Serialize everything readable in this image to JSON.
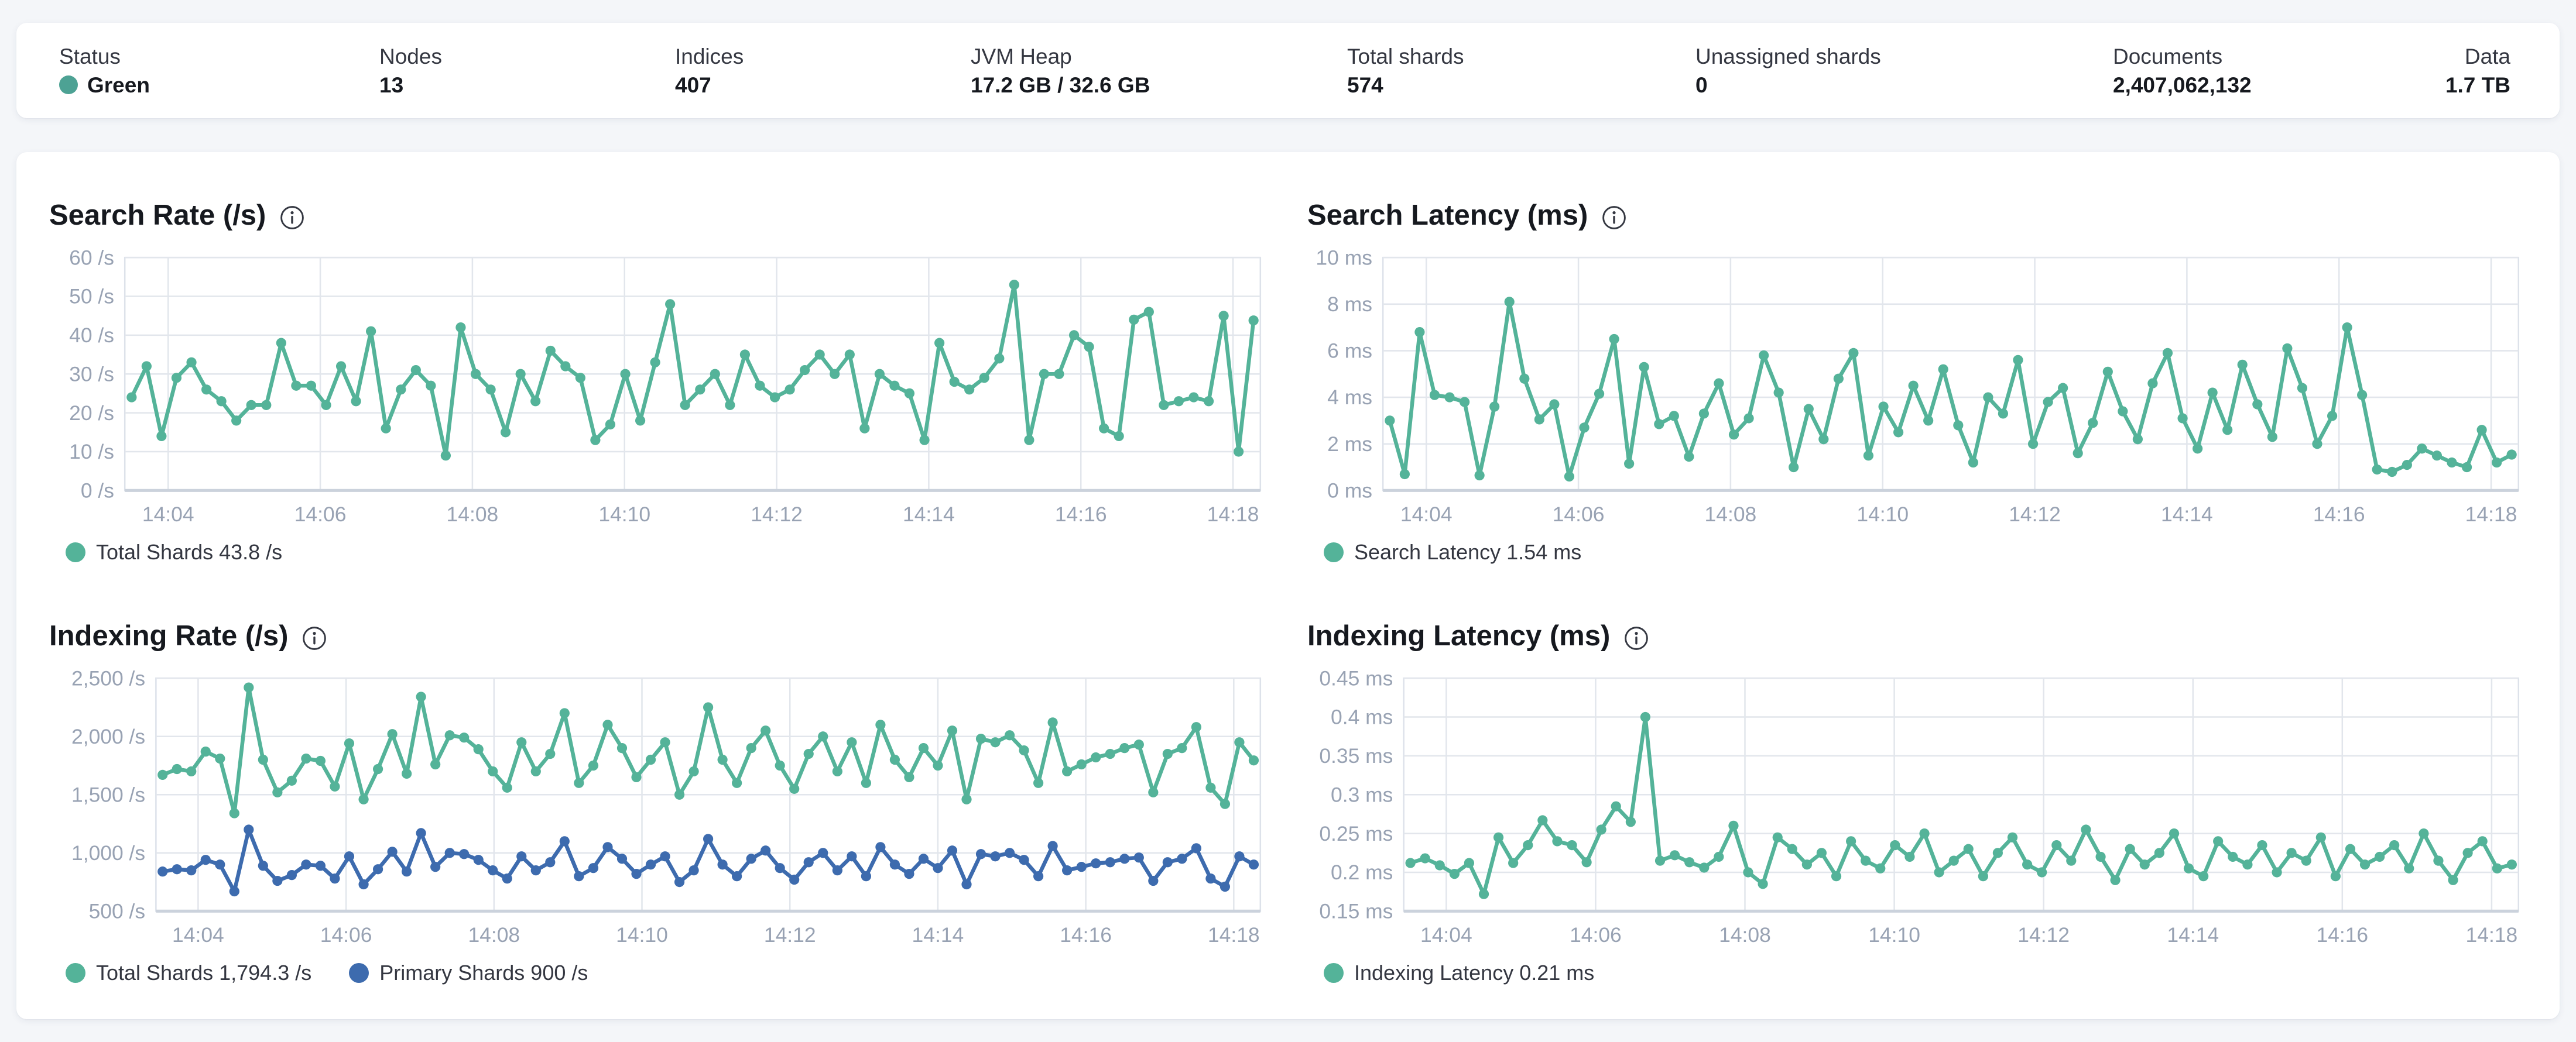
{
  "status_bar": {
    "items": [
      {
        "label": "Status",
        "value": "Green",
        "has_dot": true
      },
      {
        "label": "Nodes",
        "value": "13"
      },
      {
        "label": "Indices",
        "value": "407"
      },
      {
        "label": "JVM Heap",
        "value": "17.2 GB / 32.6 GB"
      },
      {
        "label": "Total shards",
        "value": "574"
      },
      {
        "label": "Unassigned shards",
        "value": "0"
      },
      {
        "label": "Documents",
        "value": "2,407,062,132"
      },
      {
        "label": "Data",
        "value": "1.7 TB"
      }
    ],
    "status_dot_color": "#4DA294"
  },
  "colors": {
    "teal": "#54B399",
    "blue": "#3D6BAE",
    "grid": "#E2E6EC",
    "plot_border": "#DDE2EA",
    "axis_line": "#CBD2DC",
    "tick_text": "#98A2B3"
  },
  "chart_data": [
    {
      "type": "line",
      "title": "Search Rate (/s)",
      "ylim": [
        0,
        60
      ],
      "y_ticks": [
        {
          "v": 0,
          "label": "0 /s"
        },
        {
          "v": 10,
          "label": "10 /s"
        },
        {
          "v": 20,
          "label": "20 /s"
        },
        {
          "v": 30,
          "label": "30 /s"
        },
        {
          "v": 40,
          "label": "40 /s"
        },
        {
          "v": 50,
          "label": "50 /s"
        },
        {
          "v": 60,
          "label": "60 /s"
        }
      ],
      "x_domain": [
        3.43,
        18.36
      ],
      "x_ticks": [
        {
          "m": 4,
          "label": "14:04"
        },
        {
          "m": 6,
          "label": "14:06"
        },
        {
          "m": 8,
          "label": "14:08"
        },
        {
          "m": 10,
          "label": "14:10"
        },
        {
          "m": 12,
          "label": "14:12"
        },
        {
          "m": 14,
          "label": "14:14"
        },
        {
          "m": 16,
          "label": "14:16"
        },
        {
          "m": 18,
          "label": "14:18"
        }
      ],
      "series": [
        {
          "name": "Total Shards",
          "color": "#54B399",
          "values": [
            24,
            32,
            14,
            29,
            33,
            26,
            23,
            18,
            22,
            22,
            38,
            27,
            27,
            22,
            32,
            23,
            41,
            16,
            26,
            31,
            27,
            9,
            42,
            30,
            26,
            15,
            30,
            23,
            36,
            32,
            29,
            13,
            17,
            30,
            18,
            33,
            48,
            22,
            26,
            30,
            22,
            35,
            27,
            24,
            26,
            31,
            35,
            30,
            35,
            16,
            30,
            27,
            25,
            13,
            38,
            28,
            26,
            29,
            34,
            53,
            13,
            30,
            30,
            40,
            37,
            16,
            14,
            44,
            46,
            22,
            23,
            24,
            23,
            45,
            10,
            43.8
          ]
        }
      ],
      "legend": [
        {
          "label": "Total Shards 43.8 /s",
          "color": "#54B399"
        }
      ]
    },
    {
      "type": "line",
      "title": "Search Latency (ms)",
      "ylim": [
        0,
        10
      ],
      "y_ticks": [
        {
          "v": 0,
          "label": "0 ms"
        },
        {
          "v": 2,
          "label": "2 ms"
        },
        {
          "v": 4,
          "label": "4 ms"
        },
        {
          "v": 6,
          "label": "6 ms"
        },
        {
          "v": 8,
          "label": "8 ms"
        },
        {
          "v": 10,
          "label": "10 ms"
        }
      ],
      "x_domain": [
        3.43,
        18.36
      ],
      "x_ticks": [
        {
          "m": 4,
          "label": "14:04"
        },
        {
          "m": 6,
          "label": "14:06"
        },
        {
          "m": 8,
          "label": "14:08"
        },
        {
          "m": 10,
          "label": "14:10"
        },
        {
          "m": 12,
          "label": "14:12"
        },
        {
          "m": 14,
          "label": "14:14"
        },
        {
          "m": 16,
          "label": "14:16"
        },
        {
          "m": 18,
          "label": "14:18"
        }
      ],
      "series": [
        {
          "name": "Search Latency",
          "color": "#54B399",
          "values": [
            3.0,
            0.7,
            6.8,
            4.1,
            4.0,
            3.8,
            0.65,
            3.6,
            8.1,
            4.8,
            3.05,
            3.7,
            0.6,
            2.7,
            4.15,
            6.5,
            1.15,
            5.3,
            2.85,
            3.2,
            1.45,
            3.3,
            4.6,
            2.4,
            3.1,
            5.8,
            4.2,
            1.0,
            3.5,
            2.2,
            4.8,
            5.9,
            1.5,
            3.6,
            2.5,
            4.5,
            3.0,
            5.2,
            2.8,
            1.2,
            4.0,
            3.3,
            5.6,
            2.0,
            3.8,
            4.4,
            1.6,
            2.9,
            5.1,
            3.4,
            2.2,
            4.6,
            5.9,
            3.1,
            1.8,
            4.2,
            2.6,
            5.4,
            3.7,
            2.3,
            6.1,
            4.4,
            2.0,
            3.2,
            7.0,
            4.1,
            0.9,
            0.8,
            1.1,
            1.8,
            1.5,
            1.2,
            1.0,
            2.6,
            1.2,
            1.54
          ]
        }
      ],
      "legend": [
        {
          "label": "Search Latency 1.54 ms",
          "color": "#54B399"
        }
      ]
    },
    {
      "type": "line",
      "title": "Indexing Rate (/s)",
      "ylim": [
        500,
        2500
      ],
      "y_ticks": [
        {
          "v": 500,
          "label": "500 /s"
        },
        {
          "v": 1000,
          "label": "1,000 /s"
        },
        {
          "v": 1500,
          "label": "1,500 /s"
        },
        {
          "v": 2000,
          "label": "2,000 /s"
        },
        {
          "v": 2500,
          "label": "2,500 /s"
        }
      ],
      "x_domain": [
        3.43,
        18.36
      ],
      "x_ticks": [
        {
          "m": 4,
          "label": "14:04"
        },
        {
          "m": 6,
          "label": "14:06"
        },
        {
          "m": 8,
          "label": "14:08"
        },
        {
          "m": 10,
          "label": "14:10"
        },
        {
          "m": 12,
          "label": "14:12"
        },
        {
          "m": 14,
          "label": "14:14"
        },
        {
          "m": 16,
          "label": "14:16"
        },
        {
          "m": 18,
          "label": "14:18"
        }
      ],
      "series": [
        {
          "name": "Total Shards",
          "color": "#54B399",
          "values": [
            1670,
            1720,
            1700,
            1870,
            1810,
            1340,
            2420,
            1800,
            1520,
            1620,
            1810,
            1790,
            1570,
            1940,
            1460,
            1720,
            2020,
            1680,
            2340,
            1760,
            2010,
            1990,
            1890,
            1700,
            1560,
            1950,
            1700,
            1850,
            2200,
            1600,
            1750,
            2100,
            1900,
            1650,
            1800,
            1950,
            1500,
            1700,
            2250,
            1800,
            1600,
            1900,
            2050,
            1750,
            1550,
            1850,
            2000,
            1700,
            1950,
            1600,
            2100,
            1800,
            1650,
            1900,
            1750,
            2050,
            1460,
            1980,
            1950,
            2010,
            1880,
            1600,
            2120,
            1700,
            1760,
            1820,
            1850,
            1900,
            1930,
            1520,
            1850,
            1900,
            2080,
            1560,
            1420,
            1950,
            1794.3
          ]
        },
        {
          "name": "Primary Shards",
          "color": "#3D6BAE",
          "values": [
            840,
            860,
            850,
            940,
            900,
            670,
            1200,
            890,
            760,
            810,
            900,
            890,
            780,
            970,
            730,
            860,
            1010,
            840,
            1170,
            880,
            1000,
            990,
            940,
            850,
            780,
            970,
            850,
            920,
            1100,
            800,
            870,
            1050,
            950,
            820,
            900,
            970,
            750,
            850,
            1120,
            900,
            800,
            950,
            1020,
            870,
            770,
            920,
            1000,
            850,
            970,
            800,
            1050,
            900,
            820,
            950,
            870,
            1020,
            730,
            990,
            970,
            1000,
            940,
            800,
            1060,
            850,
            880,
            910,
            920,
            950,
            960,
            760,
            920,
            950,
            1040,
            780,
            710,
            970,
            900
          ]
        }
      ],
      "legend": [
        {
          "label": "Total Shards 1,794.3 /s",
          "color": "#54B399"
        },
        {
          "label": "Primary Shards 900 /s",
          "color": "#3D6BAE"
        }
      ]
    },
    {
      "type": "line",
      "title": "Indexing Latency (ms)",
      "ylim": [
        0.15,
        0.45
      ],
      "y_ticks": [
        {
          "v": 0.15,
          "label": "0.15 ms"
        },
        {
          "v": 0.2,
          "label": "0.2 ms"
        },
        {
          "v": 0.25,
          "label": "0.25 ms"
        },
        {
          "v": 0.3,
          "label": "0.3 ms"
        },
        {
          "v": 0.35,
          "label": "0.35 ms"
        },
        {
          "v": 0.4,
          "label": "0.4 ms"
        },
        {
          "v": 0.45,
          "label": "0.45 ms"
        }
      ],
      "x_domain": [
        3.43,
        18.36
      ],
      "x_ticks": [
        {
          "m": 4,
          "label": "14:04"
        },
        {
          "m": 6,
          "label": "14:06"
        },
        {
          "m": 8,
          "label": "14:08"
        },
        {
          "m": 10,
          "label": "14:10"
        },
        {
          "m": 12,
          "label": "14:12"
        },
        {
          "m": 14,
          "label": "14:14"
        },
        {
          "m": 16,
          "label": "14:16"
        },
        {
          "m": 18,
          "label": "14:18"
        }
      ],
      "series": [
        {
          "name": "Indexing Latency",
          "color": "#54B399",
          "values": [
            0.212,
            0.218,
            0.209,
            0.198,
            0.212,
            0.172,
            0.245,
            0.212,
            0.235,
            0.267,
            0.24,
            0.235,
            0.213,
            0.255,
            0.285,
            0.265,
            0.4,
            0.215,
            0.222,
            0.213,
            0.206,
            0.22,
            0.26,
            0.2,
            0.185,
            0.245,
            0.23,
            0.21,
            0.225,
            0.195,
            0.24,
            0.215,
            0.205,
            0.235,
            0.22,
            0.25,
            0.2,
            0.215,
            0.23,
            0.195,
            0.225,
            0.245,
            0.21,
            0.2,
            0.235,
            0.215,
            0.255,
            0.22,
            0.19,
            0.23,
            0.21,
            0.225,
            0.25,
            0.205,
            0.195,
            0.24,
            0.22,
            0.21,
            0.235,
            0.2,
            0.225,
            0.215,
            0.245,
            0.195,
            0.23,
            0.21,
            0.22,
            0.235,
            0.205,
            0.25,
            0.215,
            0.19,
            0.225,
            0.24,
            0.205,
            0.21
          ]
        }
      ],
      "legend": [
        {
          "label": "Indexing Latency 0.21 ms",
          "color": "#54B399"
        }
      ]
    }
  ]
}
